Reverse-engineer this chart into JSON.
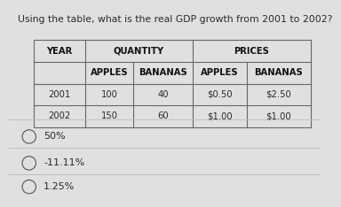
{
  "title": "Using the table, what is the real GDP growth from 2001 to 2002?",
  "title_fontsize": 7.8,
  "bg_color": "#e0e0e0",
  "table": {
    "rows": [
      [
        "2001",
        "100",
        "40",
        "$0.50",
        "$2.50"
      ],
      [
        "2002",
        "150",
        "60",
        "$1.00",
        "$1.00"
      ]
    ]
  },
  "options": [
    {
      "label": "50%"
    },
    {
      "label": "-11.11%"
    },
    {
      "label": "1.25%"
    }
  ],
  "option_fontsize": 8.0,
  "table_header_fontsize": 7.2,
  "table_data_fontsize": 7.2,
  "text_color": "#2a2a2a",
  "header_color": "#111111",
  "line_color": "#666666",
  "sep_color": "#bbbbbb"
}
